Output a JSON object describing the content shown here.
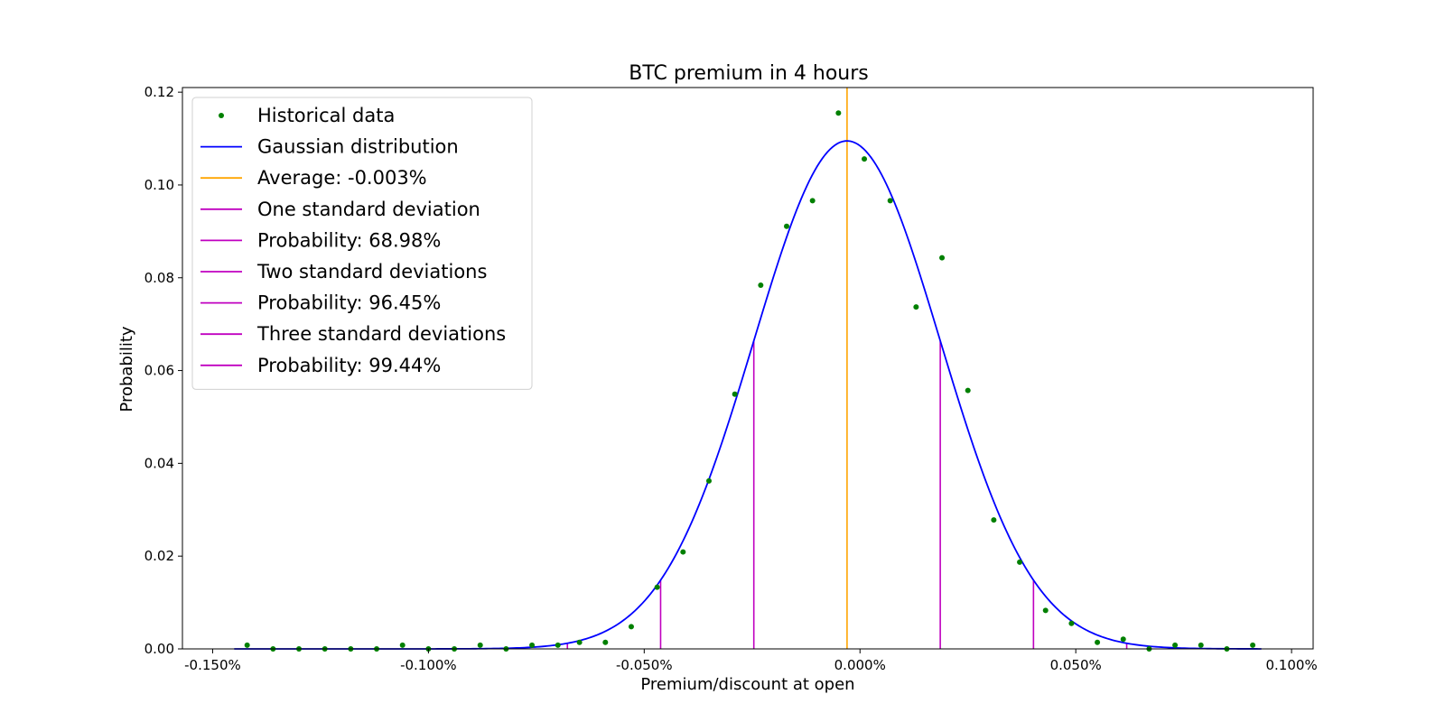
{
  "chart_data": {
    "type": "scatter",
    "title": "BTC premium in 4 hours",
    "xlabel": "Premium/discount at open",
    "ylabel": "Probability",
    "xlim": [
      -0.157,
      0.105
    ],
    "ylim": [
      0,
      0.121
    ],
    "xticks": [
      -0.15,
      -0.1,
      -0.05,
      0.0,
      0.05,
      0.1
    ],
    "xtick_labels": [
      "-0.150%",
      "-0.100%",
      "-0.050%",
      "0.000%",
      "0.050%",
      "0.100%"
    ],
    "yticks": [
      0.0,
      0.02,
      0.04,
      0.06,
      0.08,
      0.1,
      0.12
    ],
    "ytick_labels": [
      "0.00",
      "0.02",
      "0.04",
      "0.06",
      "0.08",
      "0.10",
      "0.12"
    ],
    "grid": false,
    "legend_position": "top-left",
    "colors": {
      "historical": "#008000",
      "gaussian": "#0000ff",
      "average": "#ffa500",
      "std": "#c000c0"
    },
    "series": [
      {
        "name": "Historical data",
        "kind": "points",
        "x": [
          -0.142,
          -0.136,
          -0.13,
          -0.124,
          -0.118,
          -0.112,
          -0.106,
          -0.1,
          -0.094,
          -0.088,
          -0.082,
          -0.076,
          -0.07,
          -0.065,
          -0.059,
          -0.053,
          -0.047,
          -0.041,
          -0.035,
          -0.029,
          -0.023,
          -0.017,
          -0.011,
          -0.005,
          0.001,
          0.007,
          0.013,
          0.019,
          0.025,
          0.031,
          0.037,
          0.043,
          0.049,
          0.055,
          0.061,
          0.067,
          0.073,
          0.079,
          0.085,
          0.091
        ],
        "y": [
          0.0008,
          0.0,
          0.0,
          0.0,
          0.0,
          0.0,
          0.0008,
          0.0,
          0.0,
          0.0008,
          0.0,
          0.0008,
          0.0008,
          0.0014,
          0.0014,
          0.0048,
          0.0133,
          0.0209,
          0.0362,
          0.0549,
          0.0784,
          0.0911,
          0.0966,
          0.1155,
          0.1056,
          0.0966,
          0.0737,
          0.0843,
          0.0557,
          0.0278,
          0.0187,
          0.0083,
          0.0055,
          0.0014,
          0.0021,
          0.0,
          0.0008,
          0.0008,
          0.0,
          0.0008
        ]
      },
      {
        "name": "Gaussian distribution",
        "kind": "gaussian",
        "mean": -0.003,
        "sigma": 0.0216,
        "peak": 0.1095,
        "x_range": [
          -0.145,
          0.093
        ]
      }
    ],
    "average": {
      "label": "Average: -0.003%",
      "x": -0.003
    },
    "std_lines": [
      {
        "label": "One standard deviation",
        "x": [
          -0.0246,
          0.0186
        ]
      },
      {
        "label": "Two standard deviations",
        "x": [
          -0.0462,
          0.0402
        ]
      },
      {
        "label": "Three standard deviations",
        "x": [
          -0.0678,
          0.0618
        ]
      }
    ],
    "legend": [
      {
        "label": "Historical data",
        "marker": "dot",
        "color_key": "historical"
      },
      {
        "label": "Gaussian distribution",
        "marker": "line",
        "color_key": "gaussian"
      },
      {
        "label": "Average: -0.003%",
        "marker": "line",
        "color_key": "average"
      },
      {
        "label": "One standard deviation",
        "marker": "line",
        "color_key": "std"
      },
      {
        "label": "Probability: 68.98%",
        "marker": "line",
        "color_key": "std"
      },
      {
        "label": "Two standard deviations",
        "marker": "line",
        "color_key": "std"
      },
      {
        "label": "Probability: 96.45%",
        "marker": "line",
        "color_key": "std"
      },
      {
        "label": "Three standard deviations",
        "marker": "line",
        "color_key": "std"
      },
      {
        "label": "Probability: 99.44%",
        "marker": "line",
        "color_key": "std"
      }
    ]
  }
}
